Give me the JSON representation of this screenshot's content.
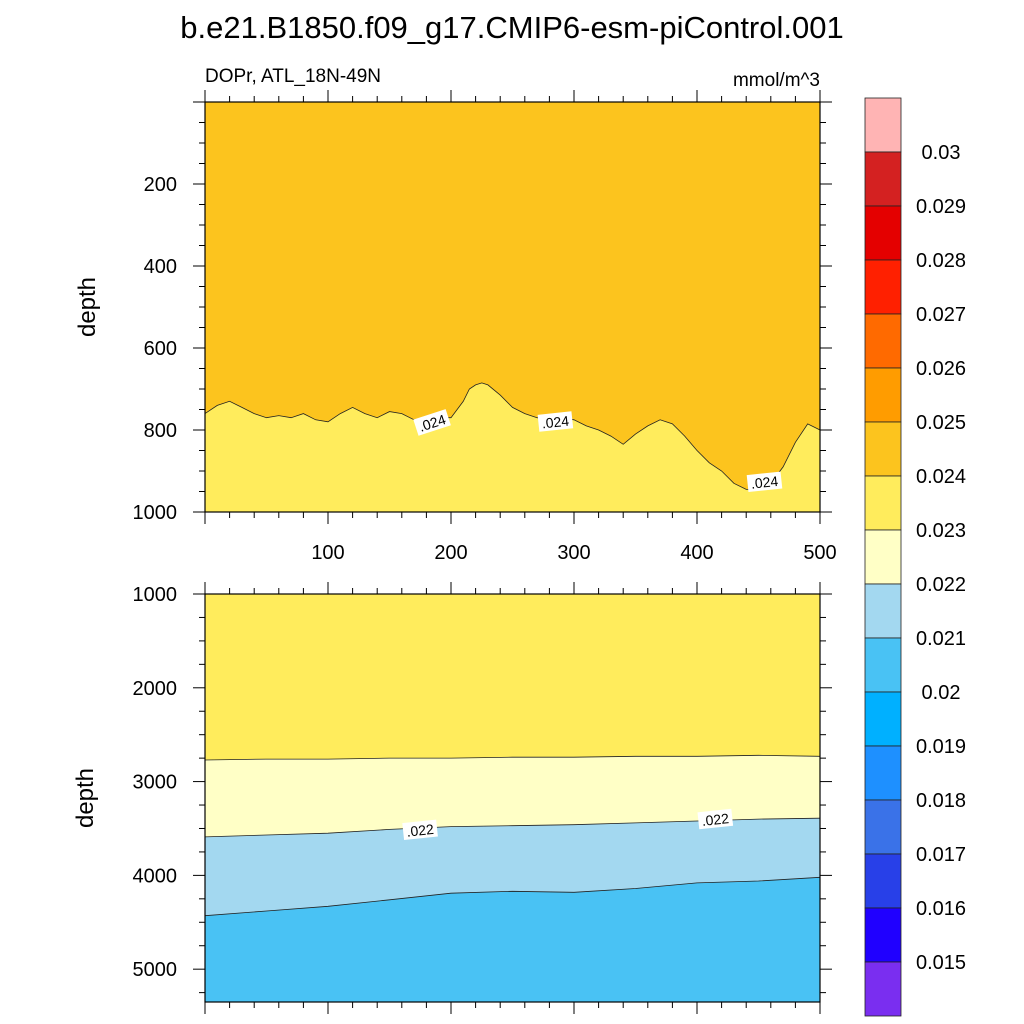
{
  "chart_data": [
    {
      "type": "contour",
      "panel": "upper",
      "title": "b.e21.B1850.f09_g17.CMIP6-esm-piControl.001",
      "subtitle_left": "DOPr, ATL_18N-49N",
      "subtitle_right": "mmol/m^3",
      "xlabel": "",
      "ylabel": "depth",
      "xlim": [
        0,
        500
      ],
      "ylim": [
        1000,
        0
      ],
      "x_ticks": [
        "100",
        "200",
        "300",
        "400",
        "500"
      ],
      "y_ticks": [
        "200",
        "400",
        "600",
        "800",
        "1000"
      ],
      "regions": [
        {
          "range": "0.024-0.025",
          "color": "#fcc41e",
          "location": "above contour"
        },
        {
          "range": "0.023-0.024",
          "color": "#ffec5c",
          "location": "below contour"
        }
      ],
      "contours": [
        {
          "level": 0.024,
          "label": ".024",
          "x": [
            0,
            10,
            20,
            30,
            40,
            50,
            60,
            70,
            80,
            90,
            100,
            110,
            120,
            130,
            140,
            150,
            160,
            170,
            180,
            190,
            200,
            210,
            215,
            220,
            225,
            230,
            240,
            250,
            260,
            270,
            280,
            290,
            300,
            310,
            320,
            330,
            340,
            350,
            360,
            370,
            380,
            390,
            400,
            410,
            420,
            430,
            440,
            450,
            460,
            470,
            480,
            490,
            500
          ],
          "y": [
            760,
            740,
            730,
            745,
            760,
            770,
            765,
            770,
            760,
            775,
            780,
            760,
            745,
            760,
            770,
            755,
            760,
            775,
            780,
            770,
            770,
            730,
            700,
            690,
            685,
            690,
            715,
            745,
            760,
            770,
            775,
            770,
            775,
            790,
            800,
            815,
            835,
            810,
            790,
            775,
            785,
            815,
            850,
            880,
            900,
            930,
            945,
            945,
            930,
            890,
            830,
            785,
            800
          ]
        }
      ],
      "contour_labels": [
        {
          "text": ".024",
          "x": 185,
          "y": 785
        },
        {
          "text": ".024",
          "x": 285,
          "y": 783
        },
        {
          "text": ".024",
          "x": 455,
          "y": 930
        }
      ]
    },
    {
      "type": "contour",
      "panel": "lower",
      "xlabel": "",
      "ylabel": "depth",
      "xlim": [
        0,
        500
      ],
      "ylim": [
        5350,
        1000
      ],
      "y_ticks": [
        "1000",
        "2000",
        "3000",
        "4000",
        "5000"
      ],
      "regions": [
        {
          "range": "0.023-0.024",
          "color": "#ffec5c",
          "location": "top"
        },
        {
          "range": "0.022-0.023",
          "color": "#ffffc6",
          "location": "between upper contours"
        },
        {
          "range": "0.021-0.022",
          "color": "#a3d8f0",
          "location": "between middle contours"
        },
        {
          "range": "0.020-0.021",
          "color": "#49c2f4",
          "location": "bottom"
        }
      ],
      "contours": [
        {
          "level": 0.023,
          "x": [
            0,
            50,
            100,
            150,
            200,
            250,
            300,
            350,
            400,
            450,
            500
          ],
          "y": [
            2770,
            2760,
            2760,
            2750,
            2750,
            2740,
            2740,
            2730,
            2730,
            2720,
            2730
          ]
        },
        {
          "level": 0.022,
          "label": ".022",
          "x": [
            0,
            50,
            100,
            150,
            200,
            250,
            300,
            350,
            400,
            450,
            500
          ],
          "y": [
            3590,
            3570,
            3550,
            3510,
            3480,
            3470,
            3460,
            3440,
            3420,
            3400,
            3390
          ]
        },
        {
          "level": 0.021,
          "x": [
            0,
            50,
            100,
            150,
            200,
            250,
            300,
            350,
            400,
            450,
            500
          ],
          "y": [
            4430,
            4380,
            4330,
            4260,
            4190,
            4170,
            4180,
            4140,
            4080,
            4060,
            4020
          ]
        }
      ],
      "contour_labels": [
        {
          "text": ".022",
          "x": 175,
          "y": 3530
        },
        {
          "text": ".022",
          "x": 415,
          "y": 3415
        }
      ]
    }
  ],
  "colorbar": {
    "labels": [
      "0.03",
      "0.029",
      "0.028",
      "0.027",
      "0.026",
      "0.025",
      "0.024",
      "0.023",
      "0.022",
      "0.021",
      "0.02",
      "0.019",
      "0.018",
      "0.017",
      "0.016",
      "0.015"
    ],
    "colors_top_to_bottom": [
      "#ffb4b4",
      "#d42121",
      "#e40000",
      "#ff2000",
      "#ff6a00",
      "#ff9c00",
      "#fcc41e",
      "#ffec5c",
      "#ffffc6",
      "#a3d8f0",
      "#49c2f4",
      "#00b0ff",
      "#1e90ff",
      "#3a72e8",
      "#2840e8",
      "#2000ff",
      "#7a2ef0"
    ]
  }
}
